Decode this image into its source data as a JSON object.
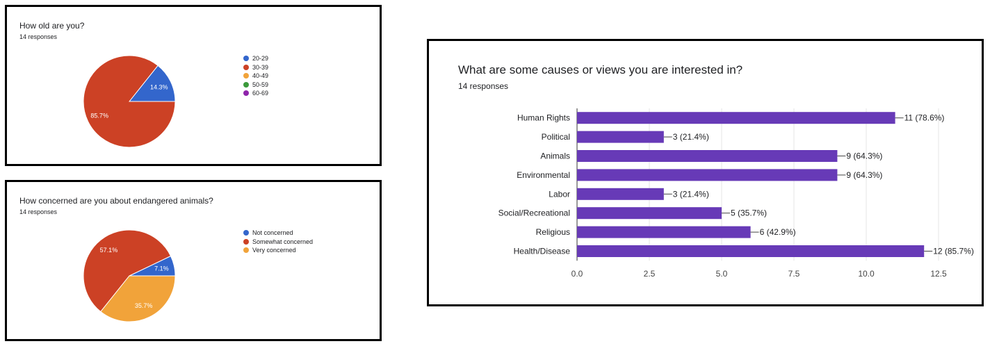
{
  "chart_data": [
    {
      "type": "pie",
      "title": "How old are you?",
      "subtitle": "14 responses",
      "categories": [
        "20-29",
        "30-39",
        "40-49",
        "50-59",
        "60-69"
      ],
      "values": [
        14.3,
        85.7,
        0,
        0,
        0
      ],
      "value_labels": [
        "14.3%",
        "85.7%",
        "",
        "",
        ""
      ],
      "colors": [
        "#3366cc",
        "#cc4125",
        "#f1a33a",
        "#3c9a3b",
        "#8e24aa"
      ],
      "legend_position": "right"
    },
    {
      "type": "pie",
      "title": "How concerned are you about endangered animals?",
      "subtitle": "14 responses",
      "categories": [
        "Not concerned",
        "Somewhat concerned",
        "Very concerned"
      ],
      "values": [
        7.1,
        57.1,
        35.7
      ],
      "value_labels": [
        "7.1%",
        "57.1%",
        "35.7%"
      ],
      "colors": [
        "#3366cc",
        "#cc4125",
        "#f1a33a"
      ],
      "legend_position": "right"
    },
    {
      "type": "bar",
      "orientation": "horizontal",
      "title": "What are some causes or views you are interested in?",
      "subtitle": "14 responses",
      "categories": [
        "Human Rights",
        "Political",
        "Animals",
        "Environmental",
        "Labor",
        "Social/Recreational",
        "Religious",
        "Health/Disease"
      ],
      "values": [
        11,
        3,
        9,
        9,
        3,
        5,
        6,
        12
      ],
      "value_labels": [
        "11 (78.6%)",
        "3 (21.4%)",
        "9 (64.3%)",
        "9 (64.3%)",
        "3 (21.4%)",
        "5 (35.7%)",
        "6 (42.9%)",
        "12 (85.7%)"
      ],
      "xlim": [
        0,
        12.5
      ],
      "xticks": [
        "0.0",
        "2.5",
        "5.0",
        "7.5",
        "10.0",
        "12.5"
      ],
      "color": "#673ab7",
      "grid": true
    }
  ]
}
